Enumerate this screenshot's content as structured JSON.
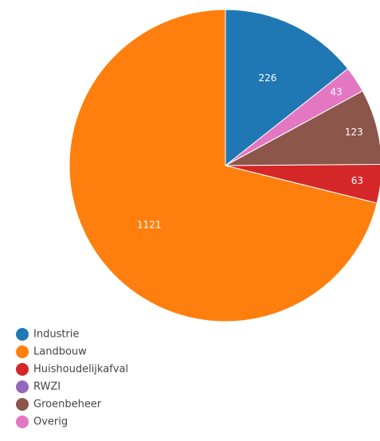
{
  "chart_data": {
    "type": "pie",
    "categories": [
      "Industrie",
      "Landbouw",
      "Huishoudelijkafval",
      "RWZI",
      "Groenbeheer",
      "Overig"
    ],
    "values": [
      226,
      1121,
      63,
      0,
      123,
      43
    ],
    "colors": [
      "#1f77b4",
      "#ff7f0e",
      "#d62728",
      "#9467bd",
      "#8c564b",
      "#e377c2"
    ],
    "legend": "bottom-left"
  }
}
